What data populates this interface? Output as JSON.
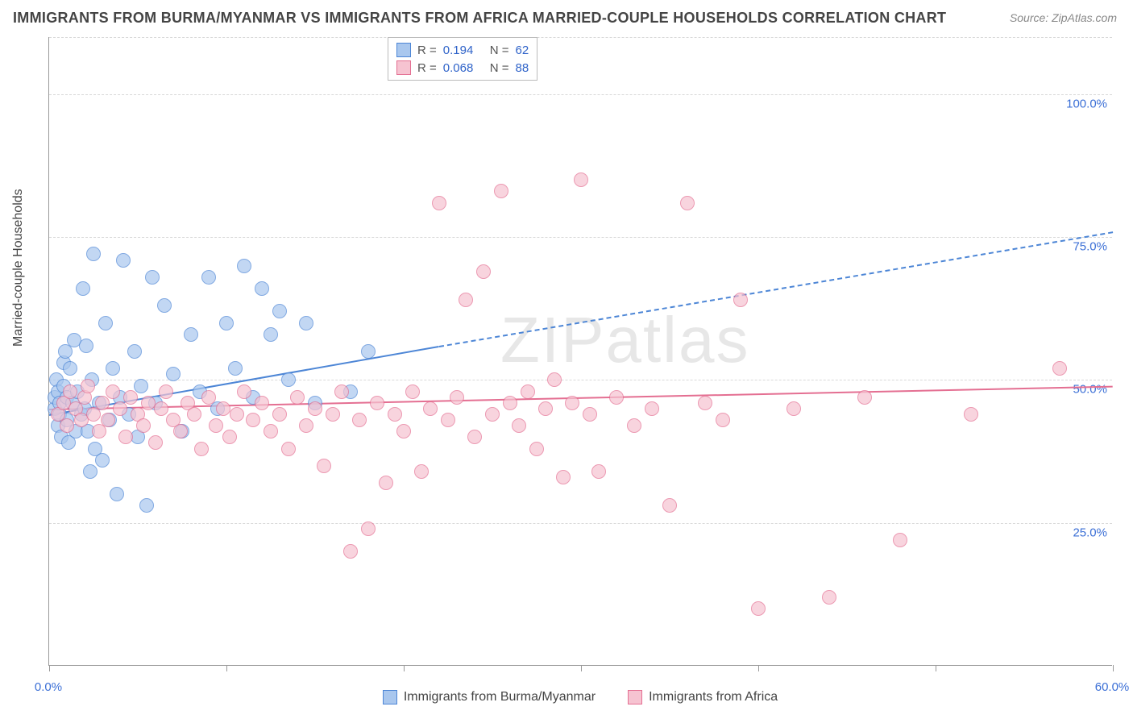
{
  "title": "IMMIGRANTS FROM BURMA/MYANMAR VS IMMIGRANTS FROM AFRICA MARRIED-COUPLE HOUSEHOLDS CORRELATION CHART",
  "source": "Source: ZipAtlas.com",
  "watermark": "ZIPatlas",
  "y_axis_label": "Married-couple Households",
  "chart": {
    "type": "scatter-correlation",
    "background_color": "#ffffff",
    "grid_color": "#d8d8d8",
    "axis_color": "#999999",
    "xlim": [
      0,
      60
    ],
    "ylim": [
      0,
      110
    ],
    "x_ticks": [
      0,
      10,
      20,
      30,
      40,
      50,
      60
    ],
    "x_tick_labels": {
      "0": "0.0%",
      "60": "60.0%"
    },
    "y_gridlines": [
      25,
      50,
      75,
      100,
      110
    ],
    "y_tick_labels": {
      "25": "25.0%",
      "50": "50.0%",
      "75": "75.0%",
      "100": "100.0%"
    },
    "marker_radius": 9,
    "marker_stroke_width": 1.5,
    "marker_fill_opacity": 0.25,
    "series": [
      {
        "id": "burma",
        "name": "Immigrants from Burma/Myanmar",
        "color_stroke": "#4d86d6",
        "color_fill": "#a9c7ee",
        "R": "0.194",
        "N": "62",
        "trend": {
          "x1": 0,
          "y1": 44,
          "x2_solid": 22,
          "y2_solid": 56,
          "x2_dash": 60,
          "y2_dash": 76,
          "width": 2.2,
          "dash": "6,5"
        },
        "points": [
          [
            0.3,
            45
          ],
          [
            0.3,
            47
          ],
          [
            0.4,
            50
          ],
          [
            0.5,
            42
          ],
          [
            0.5,
            48
          ],
          [
            0.6,
            44
          ],
          [
            0.6,
            46
          ],
          [
            0.7,
            40
          ],
          [
            0.8,
            49
          ],
          [
            0.8,
            53
          ],
          [
            0.9,
            55
          ],
          [
            1.0,
            43
          ],
          [
            1.0,
            47
          ],
          [
            1.1,
            39
          ],
          [
            1.2,
            52
          ],
          [
            1.3,
            46
          ],
          [
            1.4,
            57
          ],
          [
            1.5,
            41
          ],
          [
            1.6,
            48
          ],
          [
            1.8,
            44
          ],
          [
            1.9,
            66
          ],
          [
            2.0,
            45
          ],
          [
            2.1,
            56
          ],
          [
            2.2,
            41
          ],
          [
            2.3,
            34
          ],
          [
            2.4,
            50
          ],
          [
            2.5,
            72
          ],
          [
            2.6,
            38
          ],
          [
            2.8,
            46
          ],
          [
            3.0,
            36
          ],
          [
            3.2,
            60
          ],
          [
            3.4,
            43
          ],
          [
            3.6,
            52
          ],
          [
            3.8,
            30
          ],
          [
            4.0,
            47
          ],
          [
            4.2,
            71
          ],
          [
            4.5,
            44
          ],
          [
            4.8,
            55
          ],
          [
            5.0,
            40
          ],
          [
            5.2,
            49
          ],
          [
            5.5,
            28
          ],
          [
            5.8,
            68
          ],
          [
            6.0,
            46
          ],
          [
            6.5,
            63
          ],
          [
            7.0,
            51
          ],
          [
            7.5,
            41
          ],
          [
            8.0,
            58
          ],
          [
            8.5,
            48
          ],
          [
            9.0,
            68
          ],
          [
            9.5,
            45
          ],
          [
            10.0,
            60
          ],
          [
            10.5,
            52
          ],
          [
            11.0,
            70
          ],
          [
            11.5,
            47
          ],
          [
            12.0,
            66
          ],
          [
            12.5,
            58
          ],
          [
            13.0,
            62
          ],
          [
            13.5,
            50
          ],
          [
            14.5,
            60
          ],
          [
            15.0,
            46
          ],
          [
            17.0,
            48
          ],
          [
            18.0,
            55
          ]
        ]
      },
      {
        "id": "africa",
        "name": "Immigrants from Africa",
        "color_stroke": "#e46f92",
        "color_fill": "#f6c3d1",
        "R": "0.068",
        "N": "88",
        "trend": {
          "x1": 0,
          "y1": 45,
          "x2_solid": 60,
          "y2_solid": 49,
          "x2_dash": 60,
          "y2_dash": 49,
          "width": 2.2,
          "dash": "none"
        },
        "points": [
          [
            0.5,
            44
          ],
          [
            0.8,
            46
          ],
          [
            1.0,
            42
          ],
          [
            1.2,
            48
          ],
          [
            1.5,
            45
          ],
          [
            1.8,
            43
          ],
          [
            2.0,
            47
          ],
          [
            2.2,
            49
          ],
          [
            2.5,
            44
          ],
          [
            2.8,
            41
          ],
          [
            3.0,
            46
          ],
          [
            3.3,
            43
          ],
          [
            3.6,
            48
          ],
          [
            4.0,
            45
          ],
          [
            4.3,
            40
          ],
          [
            4.6,
            47
          ],
          [
            5.0,
            44
          ],
          [
            5.3,
            42
          ],
          [
            5.6,
            46
          ],
          [
            6.0,
            39
          ],
          [
            6.3,
            45
          ],
          [
            6.6,
            48
          ],
          [
            7.0,
            43
          ],
          [
            7.4,
            41
          ],
          [
            7.8,
            46
          ],
          [
            8.2,
            44
          ],
          [
            8.6,
            38
          ],
          [
            9.0,
            47
          ],
          [
            9.4,
            42
          ],
          [
            9.8,
            45
          ],
          [
            10.2,
            40
          ],
          [
            10.6,
            44
          ],
          [
            11.0,
            48
          ],
          [
            11.5,
            43
          ],
          [
            12.0,
            46
          ],
          [
            12.5,
            41
          ],
          [
            13.0,
            44
          ],
          [
            13.5,
            38
          ],
          [
            14.0,
            47
          ],
          [
            14.5,
            42
          ],
          [
            15.0,
            45
          ],
          [
            15.5,
            35
          ],
          [
            16.0,
            44
          ],
          [
            16.5,
            48
          ],
          [
            17.0,
            20
          ],
          [
            17.5,
            43
          ],
          [
            18.0,
            24
          ],
          [
            18.5,
            46
          ],
          [
            19.0,
            32
          ],
          [
            19.5,
            44
          ],
          [
            20.0,
            41
          ],
          [
            20.5,
            48
          ],
          [
            21.0,
            34
          ],
          [
            21.5,
            45
          ],
          [
            22.0,
            81
          ],
          [
            22.5,
            43
          ],
          [
            23.0,
            47
          ],
          [
            23.5,
            64
          ],
          [
            24.0,
            40
          ],
          [
            24.5,
            69
          ],
          [
            25.0,
            44
          ],
          [
            25.5,
            83
          ],
          [
            26.0,
            46
          ],
          [
            26.5,
            42
          ],
          [
            27.0,
            48
          ],
          [
            27.5,
            38
          ],
          [
            28.0,
            45
          ],
          [
            28.5,
            50
          ],
          [
            29.0,
            33
          ],
          [
            29.5,
            46
          ],
          [
            30.0,
            85
          ],
          [
            30.5,
            44
          ],
          [
            31.0,
            34
          ],
          [
            32.0,
            47
          ],
          [
            33.0,
            42
          ],
          [
            34.0,
            45
          ],
          [
            35.0,
            28
          ],
          [
            36.0,
            81
          ],
          [
            37.0,
            46
          ],
          [
            38.0,
            43
          ],
          [
            39.0,
            64
          ],
          [
            40.0,
            10
          ],
          [
            42.0,
            45
          ],
          [
            44.0,
            12
          ],
          [
            46.0,
            47
          ],
          [
            48.0,
            22
          ],
          [
            52.0,
            44
          ],
          [
            57.0,
            52
          ]
        ]
      }
    ]
  },
  "legend_top": {
    "r_label": "R =",
    "n_label": "N ="
  },
  "colors": {
    "value_text": "#2f63c9",
    "label_text": "#555555"
  }
}
